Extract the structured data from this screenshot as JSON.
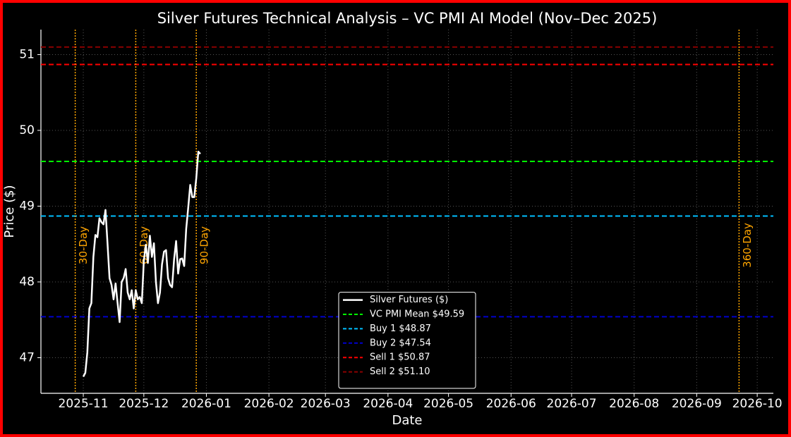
{
  "chart_data": {
    "type": "line",
    "title": "Silver Futures Technical Analysis – VC PMI AI Model (Nov–Dec 2025)",
    "x_label": "Date",
    "y_label": "Price ($)",
    "x": [
      "2025-11-01",
      "2025-11-02",
      "2025-11-03",
      "2025-11-04",
      "2025-11-05",
      "2025-11-06",
      "2025-11-07",
      "2025-11-08",
      "2025-11-09",
      "2025-11-10",
      "2025-11-11",
      "2025-11-12",
      "2025-11-13",
      "2025-11-14",
      "2025-11-15",
      "2025-11-16",
      "2025-11-17",
      "2025-11-18",
      "2025-11-19",
      "2025-11-20",
      "2025-11-21",
      "2025-11-22",
      "2025-11-23",
      "2025-11-24",
      "2025-11-25",
      "2025-11-26",
      "2025-11-27",
      "2025-11-28",
      "2025-11-29",
      "2025-11-30",
      "2025-12-01",
      "2025-12-02",
      "2025-12-03",
      "2025-12-04",
      "2025-12-05",
      "2025-12-06",
      "2025-12-07",
      "2025-12-08",
      "2025-12-09",
      "2025-12-10",
      "2025-12-11",
      "2025-12-12",
      "2025-12-13",
      "2025-12-14",
      "2025-12-15",
      "2025-12-16",
      "2025-12-17",
      "2025-12-18",
      "2025-12-19",
      "2025-12-20",
      "2025-12-21",
      "2025-12-22",
      "2025-12-23",
      "2025-12-24",
      "2025-12-25",
      "2025-12-26",
      "2025-12-27",
      "2025-12-28",
      "2025-12-29"
    ],
    "series": [
      {
        "name": "Silver Futures ($)",
        "color": "#ffffff",
        "values": [
          46.75,
          46.8,
          47.07,
          47.65,
          47.72,
          48.33,
          48.62,
          48.59,
          48.84,
          48.79,
          48.76,
          48.95,
          48.51,
          48.05,
          47.96,
          47.77,
          47.98,
          47.72,
          47.47,
          48.0,
          48.05,
          48.17,
          47.86,
          47.77,
          47.89,
          47.65,
          47.89,
          47.77,
          47.8,
          47.72,
          48.28,
          48.49,
          48.25,
          48.61,
          48.33,
          48.51,
          48.0,
          47.72,
          47.86,
          48.23,
          48.4,
          48.42,
          48.05,
          47.96,
          47.93,
          48.3,
          48.54,
          48.11,
          48.3,
          48.31,
          48.21,
          48.7,
          48.98,
          49.28,
          49.12,
          49.12,
          49.37,
          49.72,
          49.69
        ]
      }
    ],
    "reference_lines": [
      {
        "name": "VC PMI Mean $49.59",
        "value": 49.59,
        "color": "#00ff00"
      },
      {
        "name": "Buy 1 $48.87",
        "value": 48.87,
        "color": "#00bfff"
      },
      {
        "name": "Buy 2 $47.54",
        "value": 47.54,
        "color": "#0000cd"
      },
      {
        "name": "Sell 1 $50.87",
        "value": 50.87,
        "color": "#ff0000"
      },
      {
        "name": "Sell 2 $51.10",
        "value": 51.1,
        "color": "#8b0000"
      }
    ],
    "markers": [
      {
        "label": "30-Day",
        "x": "2025-10-28",
        "color": "#ffa500"
      },
      {
        "label": "60-Day",
        "x": "2025-11-27",
        "color": "#ffa500"
      },
      {
        "label": "90-Day",
        "x": "2025-12-27",
        "color": "#ffa500"
      },
      {
        "label": "360-Day",
        "x": "2026-09-22",
        "color": "#ffa500"
      }
    ],
    "xlim": [
      "2025-10-11",
      "2026-10-09"
    ],
    "ylim": [
      46.53,
      51.33
    ],
    "xticks": [
      "2025-11",
      "2025-12",
      "2026-01",
      "2026-02",
      "2026-03",
      "2026-04",
      "2026-05",
      "2026-06",
      "2026-07",
      "2026-08",
      "2026-09",
      "2026-10"
    ],
    "yticks": [
      47,
      48,
      49,
      50,
      51
    ],
    "grid": true,
    "legend": "lower center"
  }
}
